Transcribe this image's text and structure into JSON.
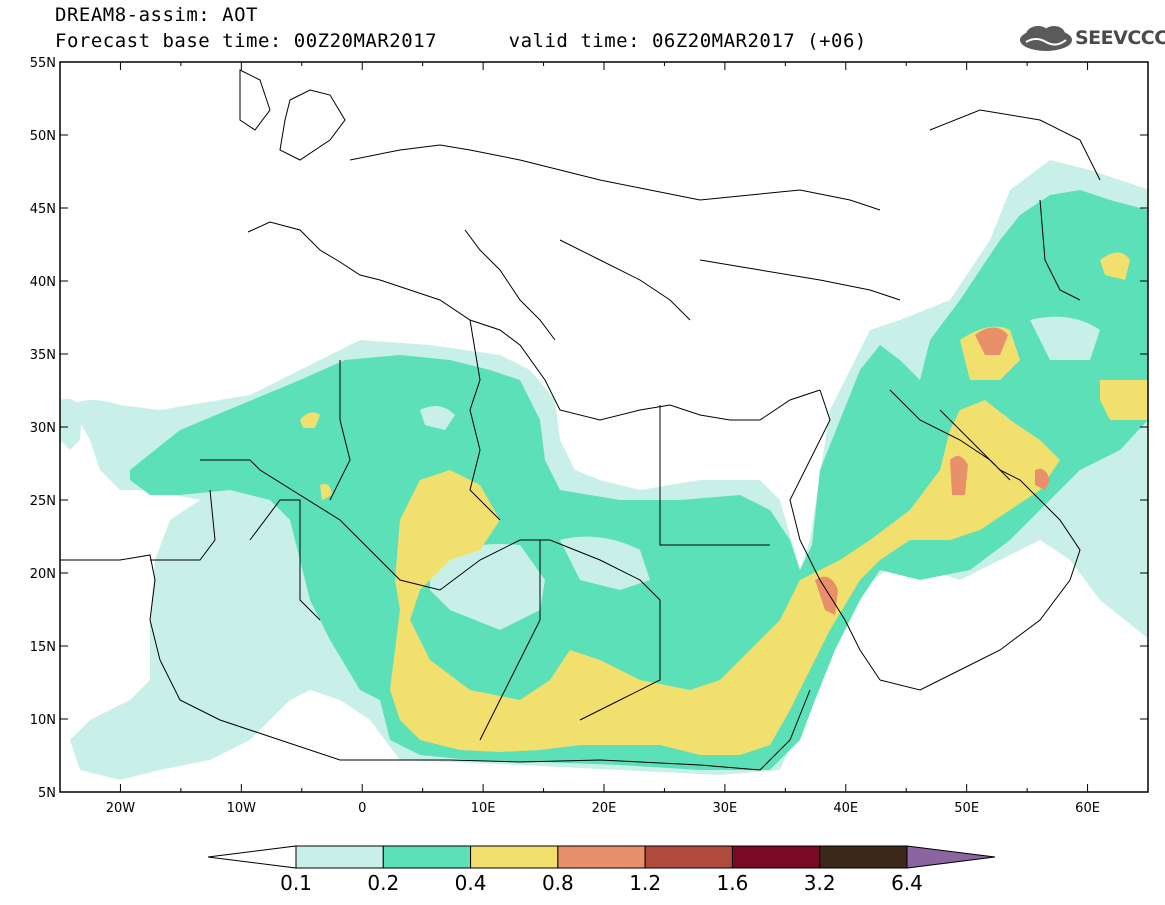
{
  "header": {
    "title_line1": "DREAM8-assim: AOT",
    "title_line2": "Forecast base time: 00Z20MAR2017      valid time: 06Z20MAR2017 (+06)",
    "logo_text": "SEEVCCC"
  },
  "map": {
    "lon_range": [
      -25,
      65
    ],
    "lat_range": [
      5,
      55
    ],
    "lat_ticks": [
      "55N",
      "50N",
      "45N",
      "40N",
      "35N",
      "30N",
      "25N",
      "20N",
      "15N",
      "10N",
      "5N"
    ],
    "lon_ticks": [
      "20W",
      "10W",
      "0",
      "10E",
      "20E",
      "30E",
      "40E",
      "50E",
      "60E"
    ]
  },
  "legend": {
    "levels": [
      "0.1",
      "0.2",
      "0.4",
      "0.8",
      "1.2",
      "1.6",
      "3.2",
      "6.4"
    ],
    "colors": [
      "#ffffff",
      "#c8f0e8",
      "#5ce0b8",
      "#f2e06e",
      "#e8906a",
      "#b04a3c",
      "#7a0a24",
      "#3c2818",
      "#8c64a0"
    ]
  }
}
